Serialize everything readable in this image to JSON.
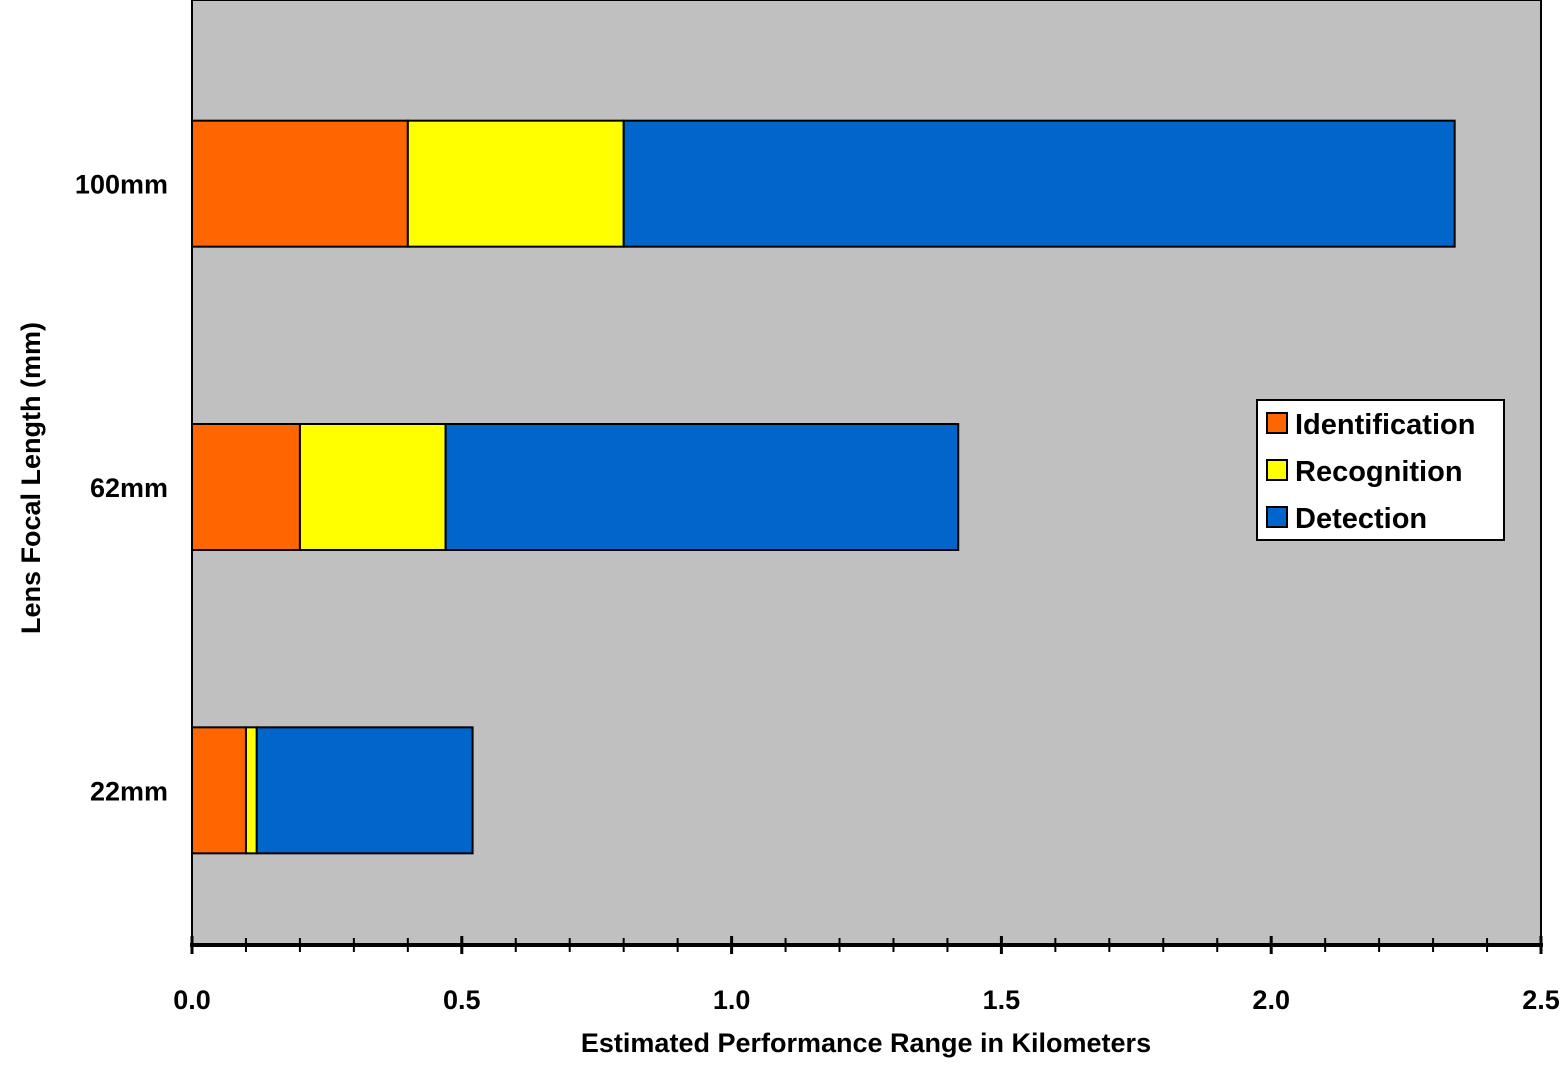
{
  "chart_data": {
    "type": "bar",
    "orientation": "horizontal",
    "stacked": true,
    "categories": [
      "22mm",
      "62mm",
      "100mm"
    ],
    "series": [
      {
        "name": "Identification",
        "color": "#ff6600",
        "values": [
          0.1,
          0.2,
          0.4
        ]
      },
      {
        "name": "Recognition",
        "color": "#ffff00",
        "values": [
          0.02,
          0.27,
          0.4
        ]
      },
      {
        "name": "Detection",
        "color": "#0066cc",
        "values": [
          0.4,
          0.95,
          1.54
        ]
      }
    ],
    "xlabel": "Estimated Performance Range in Kilometers",
    "ylabel": "Lens Focal Length (mm)",
    "xlim": [
      0,
      2.5
    ],
    "x_ticks": [
      "0.0",
      "0.5",
      "1.0",
      "1.5",
      "2.0",
      "2.5"
    ],
    "x_minor_step": 0.1,
    "grid": false,
    "plot_background": "#c0c0c0",
    "legend": {
      "placement": "right"
    }
  }
}
